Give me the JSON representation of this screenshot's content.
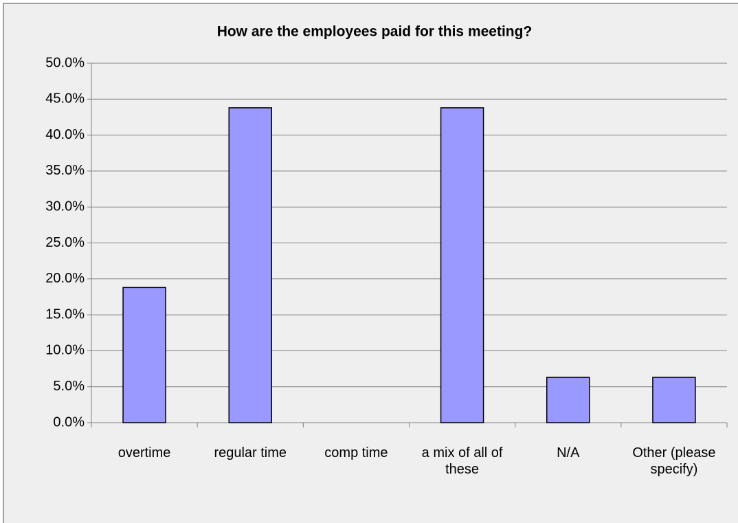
{
  "chart_data": {
    "type": "bar",
    "title": "How are the employees paid for this meeting?",
    "categories": [
      "overtime",
      "regular time",
      "comp time",
      "a mix of all of these",
      "N/A",
      "Other (please specify)"
    ],
    "values": [
      18.8,
      43.8,
      0,
      43.8,
      6.3,
      6.3
    ],
    "color": "#9999ff",
    "ylim": [
      0,
      50
    ],
    "yticks": [
      {
        "value": 0,
        "label": "0.0%"
      },
      {
        "value": 5,
        "label": "5.0%"
      },
      {
        "value": 10,
        "label": "10.0%"
      },
      {
        "value": 15,
        "label": "15.0%"
      },
      {
        "value": 20,
        "label": "20.0%"
      },
      {
        "value": 25,
        "label": "25.0%"
      },
      {
        "value": 30,
        "label": "30.0%"
      },
      {
        "value": 35,
        "label": "35.0%"
      },
      {
        "value": 40,
        "label": "40.0%"
      },
      {
        "value": 45,
        "label": "45.0%"
      },
      {
        "value": 50,
        "label": "50.0%"
      }
    ],
    "grid": true
  }
}
